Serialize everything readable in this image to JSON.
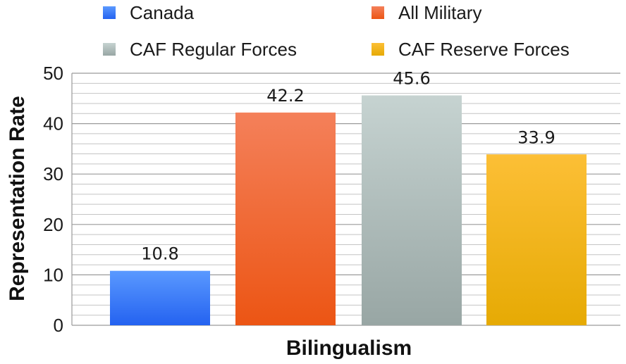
{
  "chart_data": {
    "type": "bar",
    "categories": [
      "Canada",
      "All Military",
      "CAF Regular Forces",
      "CAF Reserve Forces"
    ],
    "values": [
      10.8,
      42.2,
      45.6,
      33.9
    ],
    "value_labels": [
      "10.8",
      "42.2",
      "45.6",
      "33.9"
    ],
    "xlabel": "Bilingualism",
    "ylabel": "Representation Rate",
    "ylim": [
      0,
      50
    ],
    "yticks": [
      0,
      10,
      20,
      30,
      40,
      50
    ],
    "ytick_labels": [
      "0",
      "10",
      "20",
      "30",
      "40",
      "50"
    ],
    "grid": true,
    "legend_position": "top",
    "colors": {
      "Canada": [
        "#5a99ff",
        "#2462f0"
      ],
      "All Military": [
        "#f4805a",
        "#ec5514"
      ],
      "CAF Regular Forces": [
        "#c6d3d1",
        "#98a6a4"
      ],
      "CAF Reserve Forces": [
        "#fcbf36",
        "#e6aa04"
      ]
    }
  }
}
